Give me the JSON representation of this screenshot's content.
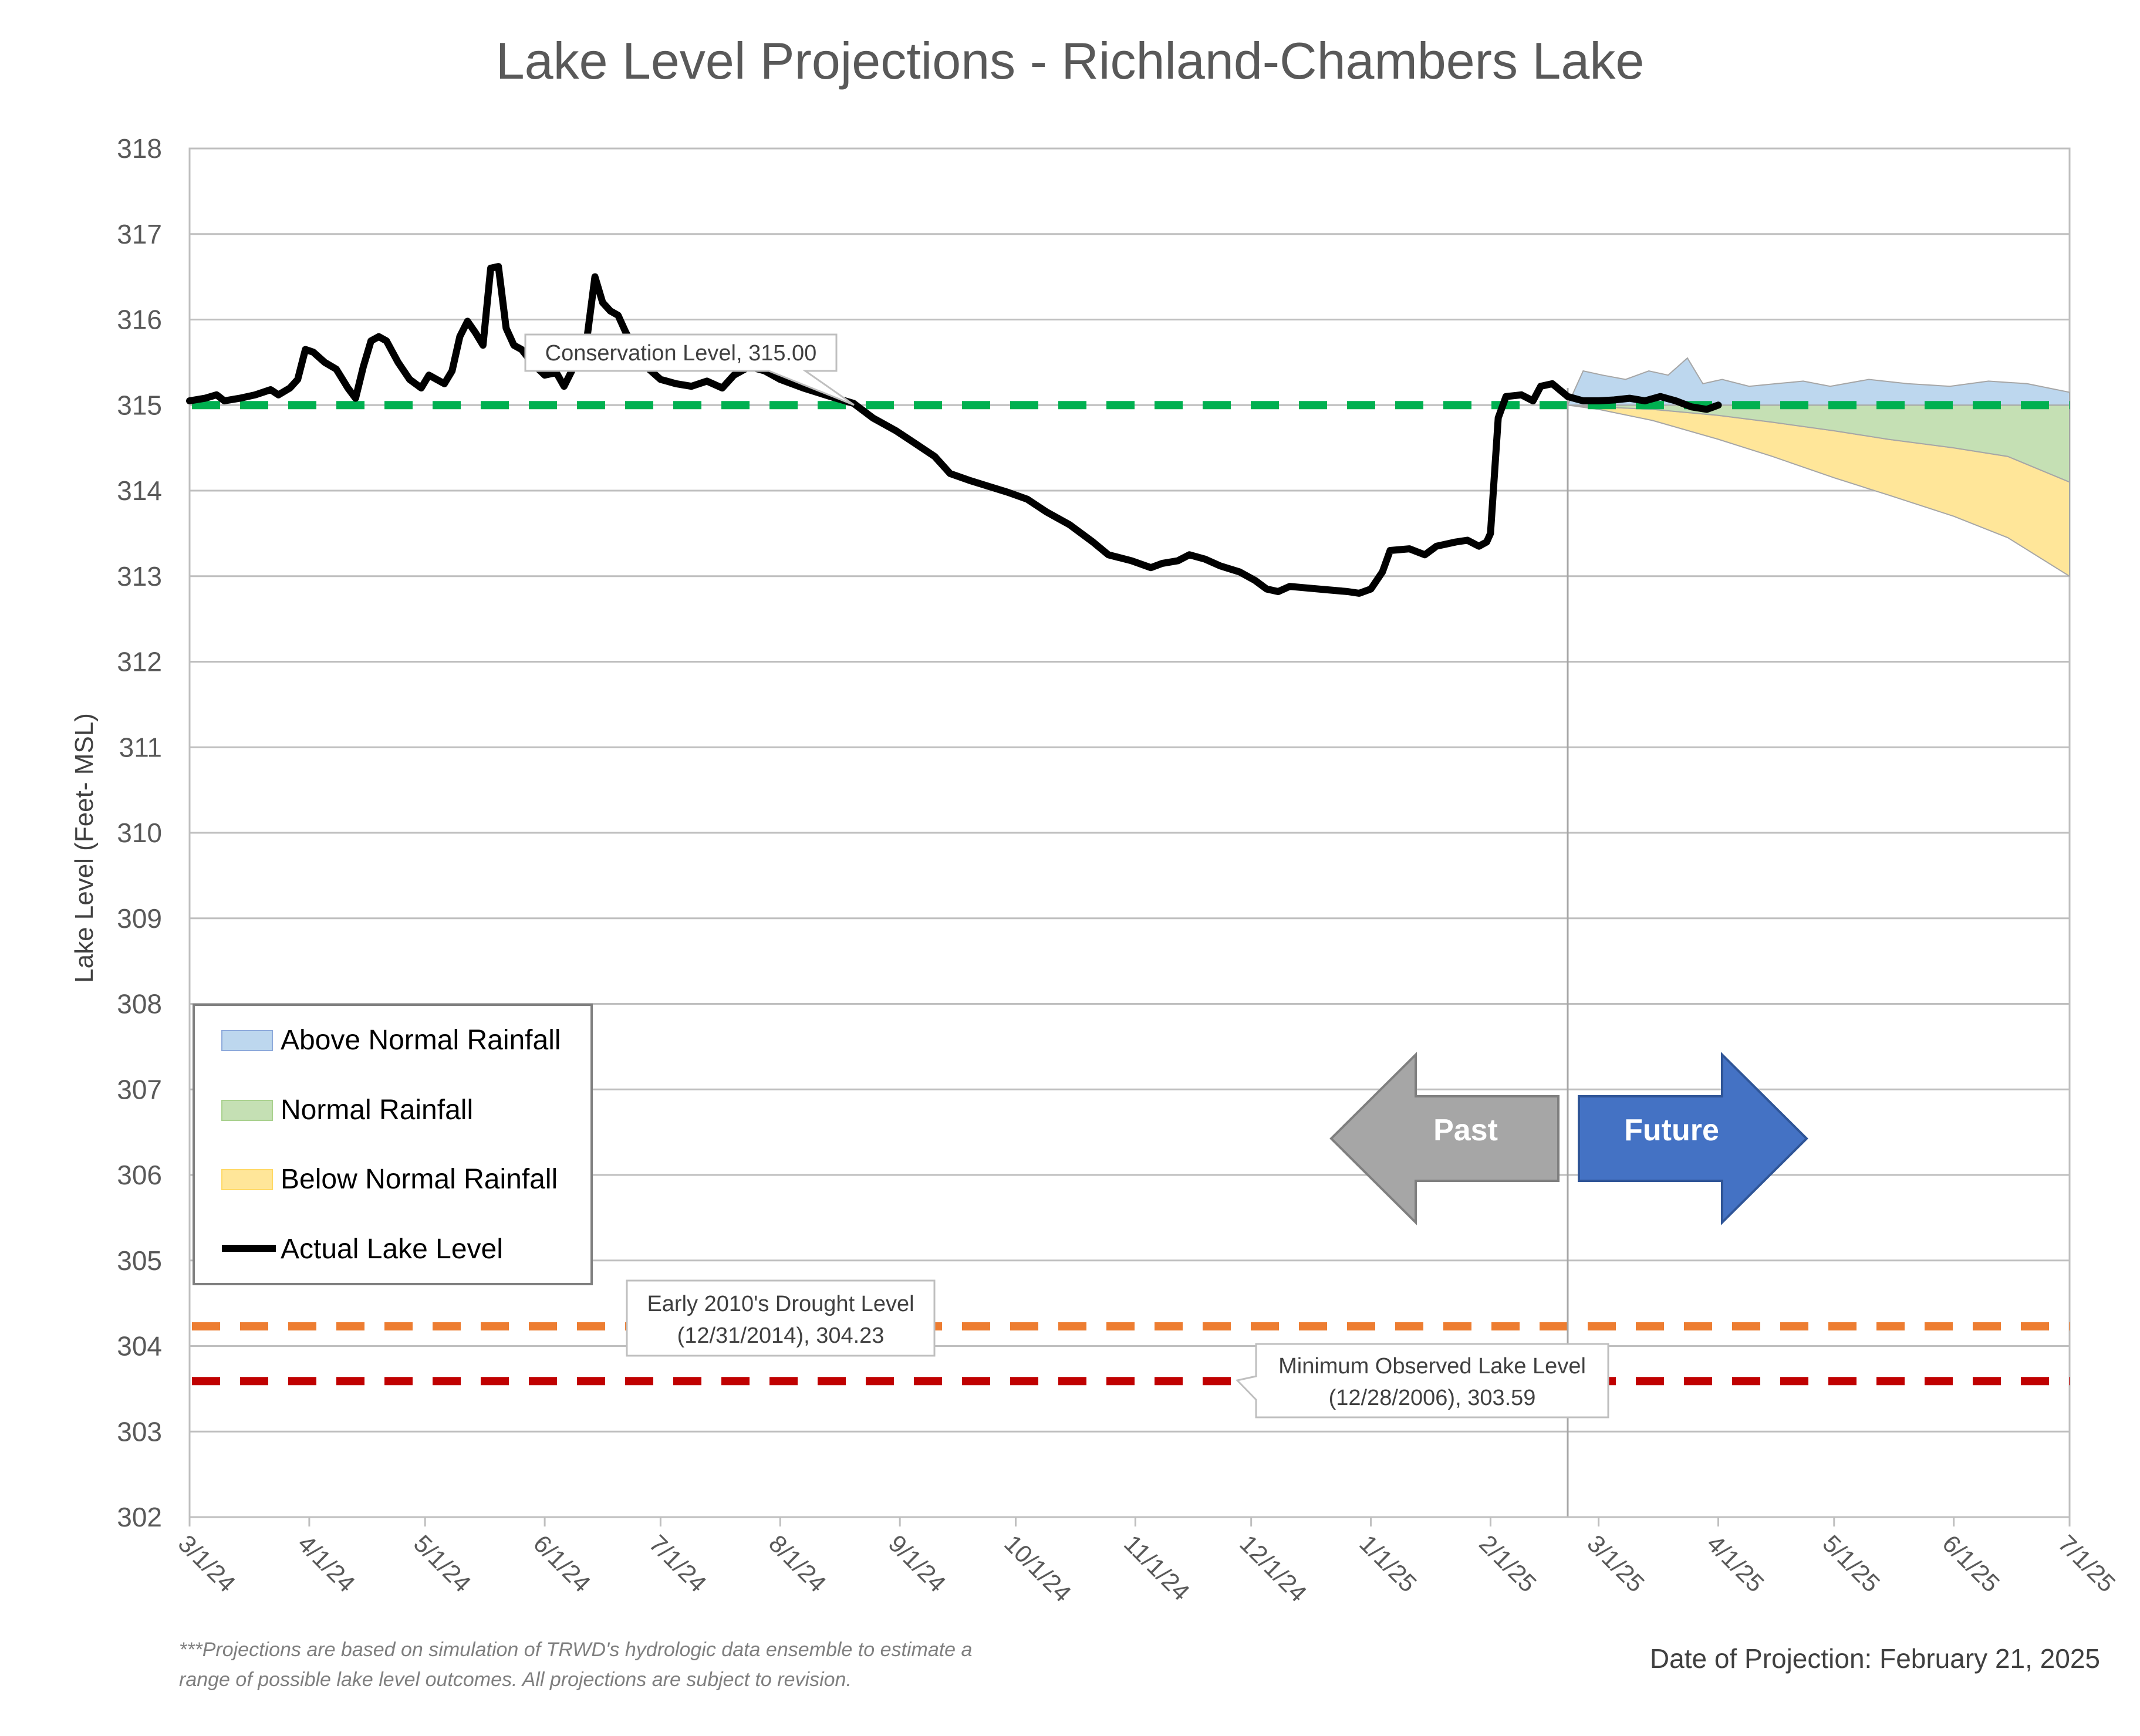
{
  "chart_data": {
    "type": "area",
    "title": "Lake Level Projections - Richland-Chambers Lake",
    "ylabel": "Lake Level (Feet- MSL)",
    "xlabel": "",
    "ylim": [
      302,
      318
    ],
    "yticks": [
      302,
      303,
      304,
      305,
      306,
      307,
      308,
      309,
      310,
      311,
      312,
      313,
      314,
      315,
      316,
      317,
      318
    ],
    "xlim": [
      "2024-03-01",
      "2025-07-01"
    ],
    "xticks": [
      {
        "label": "3/1/24",
        "date": "2024-03-01"
      },
      {
        "label": "4/1/24",
        "date": "2024-04-01"
      },
      {
        "label": "5/1/24",
        "date": "2024-05-01"
      },
      {
        "label": "6/1/24",
        "date": "2024-06-01"
      },
      {
        "label": "7/1/24",
        "date": "2024-07-01"
      },
      {
        "label": "8/1/24",
        "date": "2024-08-01"
      },
      {
        "label": "9/1/24",
        "date": "2024-09-01"
      },
      {
        "label": "10/1/24",
        "date": "2024-10-01"
      },
      {
        "label": "11/1/24",
        "date": "2024-11-01"
      },
      {
        "label": "12/1/24",
        "date": "2024-12-01"
      },
      {
        "label": "1/1/25",
        "date": "2025-01-01"
      },
      {
        "label": "2/1/25",
        "date": "2025-02-01"
      },
      {
        "label": "3/1/25",
        "date": "2025-03-01"
      },
      {
        "label": "4/1/25",
        "date": "2025-04-01"
      },
      {
        "label": "5/1/25",
        "date": "2025-05-01"
      },
      {
        "label": "6/1/25",
        "date": "2025-06-01"
      },
      {
        "label": "7/1/25",
        "date": "2025-07-01"
      }
    ],
    "grid": true,
    "legend_position": "bottom-left",
    "projection_date": "2025-02-21",
    "series": [
      {
        "name": "Actual Lake Level",
        "color": "#000000",
        "type": "line",
        "points": [
          [
            "2024-03-01",
            315.05
          ],
          [
            "2024-03-05",
            315.08
          ],
          [
            "2024-03-08",
            315.12
          ],
          [
            "2024-03-10",
            315.05
          ],
          [
            "2024-03-14",
            315.08
          ],
          [
            "2024-03-18",
            315.12
          ],
          [
            "2024-03-22",
            315.18
          ],
          [
            "2024-03-24",
            315.12
          ],
          [
            "2024-03-27",
            315.2
          ],
          [
            "2024-03-29",
            315.3
          ],
          [
            "2024-03-31",
            315.65
          ],
          [
            "2024-04-02",
            315.62
          ],
          [
            "2024-04-05",
            315.5
          ],
          [
            "2024-04-08",
            315.42
          ],
          [
            "2024-04-11",
            315.2
          ],
          [
            "2024-04-13",
            315.08
          ],
          [
            "2024-04-15",
            315.45
          ],
          [
            "2024-04-17",
            315.75
          ],
          [
            "2024-04-19",
            315.8
          ],
          [
            "2024-04-21",
            315.75
          ],
          [
            "2024-04-24",
            315.5
          ],
          [
            "2024-04-27",
            315.3
          ],
          [
            "2024-04-30",
            315.2
          ],
          [
            "2024-05-02",
            315.35
          ],
          [
            "2024-05-04",
            315.3
          ],
          [
            "2024-05-06",
            315.25
          ],
          [
            "2024-05-08",
            315.4
          ],
          [
            "2024-05-10",
            315.8
          ],
          [
            "2024-05-12",
            315.98
          ],
          [
            "2024-05-14",
            315.85
          ],
          [
            "2024-05-16",
            315.7
          ],
          [
            "2024-05-18",
            316.6
          ],
          [
            "2024-05-20",
            316.62
          ],
          [
            "2024-05-22",
            315.9
          ],
          [
            "2024-05-24",
            315.7
          ],
          [
            "2024-05-26",
            315.65
          ],
          [
            "2024-05-29",
            315.48
          ],
          [
            "2024-06-01",
            315.35
          ],
          [
            "2024-06-04",
            315.38
          ],
          [
            "2024-06-06",
            315.22
          ],
          [
            "2024-06-08",
            315.4
          ],
          [
            "2024-06-10",
            315.6
          ],
          [
            "2024-06-12",
            315.8
          ],
          [
            "2024-06-14",
            316.5
          ],
          [
            "2024-06-16",
            316.2
          ],
          [
            "2024-06-18",
            316.1
          ],
          [
            "2024-06-20",
            316.05
          ],
          [
            "2024-06-22",
            315.85
          ],
          [
            "2024-06-25",
            315.6
          ],
          [
            "2024-06-28",
            315.42
          ],
          [
            "2024-07-01",
            315.3
          ],
          [
            "2024-07-05",
            315.25
          ],
          [
            "2024-07-09",
            315.22
          ],
          [
            "2024-07-13",
            315.28
          ],
          [
            "2024-07-17",
            315.2
          ],
          [
            "2024-07-20",
            315.35
          ],
          [
            "2024-07-24",
            315.45
          ],
          [
            "2024-07-28",
            315.4
          ],
          [
            "2024-08-01",
            315.3
          ],
          [
            "2024-08-07",
            315.2
          ],
          [
            "2024-08-14",
            315.1
          ],
          [
            "2024-08-20",
            315.02
          ],
          [
            "2024-08-25",
            314.85
          ],
          [
            "2024-08-31",
            314.7
          ],
          [
            "2024-09-05",
            314.55
          ],
          [
            "2024-09-10",
            314.4
          ],
          [
            "2024-09-14",
            314.2
          ],
          [
            "2024-09-19",
            314.12
          ],
          [
            "2024-09-24",
            314.05
          ],
          [
            "2024-09-29",
            313.98
          ],
          [
            "2024-10-04",
            313.9
          ],
          [
            "2024-10-09",
            313.75
          ],
          [
            "2024-10-15",
            313.6
          ],
          [
            "2024-10-21",
            313.4
          ],
          [
            "2024-10-25",
            313.25
          ],
          [
            "2024-10-31",
            313.18
          ],
          [
            "2024-11-05",
            313.1
          ],
          [
            "2024-11-08",
            313.15
          ],
          [
            "2024-11-12",
            313.18
          ],
          [
            "2024-11-15",
            313.25
          ],
          [
            "2024-11-19",
            313.2
          ],
          [
            "2024-11-23",
            313.12
          ],
          [
            "2024-11-28",
            313.05
          ],
          [
            "2024-12-02",
            312.95
          ],
          [
            "2024-12-05",
            312.85
          ],
          [
            "2024-12-08",
            312.82
          ],
          [
            "2024-12-11",
            312.88
          ],
          [
            "2024-12-16",
            312.86
          ],
          [
            "2024-12-21",
            312.84
          ],
          [
            "2024-12-26",
            312.82
          ],
          [
            "2024-12-29",
            312.8
          ],
          [
            "2025-01-01",
            312.85
          ],
          [
            "2025-01-04",
            313.05
          ],
          [
            "2025-01-06",
            313.3
          ],
          [
            "2025-01-11",
            313.32
          ],
          [
            "2025-01-15",
            313.25
          ],
          [
            "2025-01-18",
            313.35
          ],
          [
            "2025-01-23",
            313.4
          ],
          [
            "2025-01-26",
            313.42
          ],
          [
            "2025-01-29",
            313.35
          ],
          [
            "2025-01-31",
            313.4
          ],
          [
            "2025-02-01",
            313.5
          ],
          [
            "2025-02-03",
            314.85
          ],
          [
            "2025-02-05",
            315.1
          ],
          [
            "2025-02-09",
            315.12
          ],
          [
            "2025-02-12",
            315.05
          ],
          [
            "2025-02-14",
            315.22
          ],
          [
            "2025-02-17",
            315.25
          ],
          [
            "2025-02-21",
            315.1
          ],
          [
            "2025-02-25",
            315.05
          ],
          [
            "2025-03-01",
            315.05
          ],
          [
            "2025-03-05",
            315.06
          ],
          [
            "2025-03-09",
            315.08
          ],
          [
            "2025-03-13",
            315.05
          ],
          [
            "2025-03-17",
            315.1
          ],
          [
            "2025-03-21",
            315.05
          ],
          [
            "2025-03-25",
            314.98
          ],
          [
            "2025-03-29",
            314.95
          ],
          [
            "2025-04-01",
            315.0
          ]
        ]
      },
      {
        "name": "Above Normal Rainfall",
        "color": "#bdd7ee",
        "type": "area",
        "band_low": "Normal upper bound (315.00)",
        "points": [
          [
            "2025-02-21",
            315.0
          ],
          [
            "2025-02-25",
            315.4
          ],
          [
            "2025-03-02",
            315.35
          ],
          [
            "2025-03-08",
            315.3
          ],
          [
            "2025-03-14",
            315.4
          ],
          [
            "2025-03-19",
            315.35
          ],
          [
            "2025-03-24",
            315.55
          ],
          [
            "2025-03-28",
            315.25
          ],
          [
            "2025-04-02",
            315.3
          ],
          [
            "2025-04-09",
            315.22
          ],
          [
            "2025-04-16",
            315.25
          ],
          [
            "2025-04-23",
            315.28
          ],
          [
            "2025-04-30",
            315.22
          ],
          [
            "2025-05-10",
            315.3
          ],
          [
            "2025-05-20",
            315.25
          ],
          [
            "2025-05-31",
            315.22
          ],
          [
            "2025-06-10",
            315.28
          ],
          [
            "2025-06-20",
            315.25
          ],
          [
            "2025-07-01",
            315.15
          ]
        ]
      },
      {
        "name": "Normal Rainfall",
        "color": "#c5e0b4",
        "type": "area",
        "points_upper": [
          [
            "2025-02-21",
            315.0
          ],
          [
            "2025-07-01",
            315.0
          ]
        ],
        "points": [
          [
            "2025-02-21",
            315.0
          ],
          [
            "2025-03-01",
            314.98
          ],
          [
            "2025-03-15",
            314.95
          ],
          [
            "2025-04-01",
            314.88
          ],
          [
            "2025-04-15",
            314.8
          ],
          [
            "2025-05-01",
            314.7
          ],
          [
            "2025-05-15",
            314.6
          ],
          [
            "2025-06-01",
            314.5
          ],
          [
            "2025-06-15",
            314.4
          ],
          [
            "2025-07-01",
            314.1
          ]
        ]
      },
      {
        "name": "Below Normal Rainfall",
        "color": "#ffe699",
        "type": "area",
        "points": [
          [
            "2025-02-21",
            315.0
          ],
          [
            "2025-03-01",
            314.95
          ],
          [
            "2025-03-15",
            314.82
          ],
          [
            "2025-04-01",
            314.6
          ],
          [
            "2025-04-15",
            314.4
          ],
          [
            "2025-05-01",
            314.15
          ],
          [
            "2025-05-15",
            313.95
          ],
          [
            "2025-06-01",
            313.7
          ],
          [
            "2025-06-15",
            313.45
          ],
          [
            "2025-07-01",
            313.0
          ]
        ]
      }
    ],
    "reference_lines": [
      {
        "label": "Conservation Level, 315.00",
        "value": 315.0,
        "color": "#00b050"
      },
      {
        "label_line1": "Early 2010's Drought Level",
        "label_line2": "(12/31/2014), 304.23",
        "value": 304.23,
        "color": "#ed7d31"
      },
      {
        "label_line1": "Minimum Observed Lake Level",
        "label_line2": "(12/28/2006), 303.59",
        "value": 303.59,
        "color": "#c00000"
      }
    ]
  },
  "legend": {
    "items": [
      {
        "label": "Above Normal Rainfall",
        "swatch": "#bdd7ee",
        "border": "#8eaadb"
      },
      {
        "label": "Normal Rainfall",
        "swatch": "#c5e0b4",
        "border": "#a9d18e"
      },
      {
        "label": "Below Normal Rainfall",
        "swatch": "#ffe699",
        "border": "#ffd966"
      },
      {
        "label": "Actual Lake Level",
        "swatch": "#000000",
        "border": "#000000"
      }
    ]
  },
  "arrows": {
    "past_label": "Past",
    "future_label": "Future",
    "past_color": "#a6a6a6",
    "future_color": "#4472c4"
  },
  "footnote": {
    "line1": "***Projections are based on simulation of TRWD's hydrologic data ensemble to estimate a",
    "line2": "range of possible lake level outcomes.  All projections are subject to revision."
  },
  "projection_note": "Date of Projection: February 21, 2025"
}
